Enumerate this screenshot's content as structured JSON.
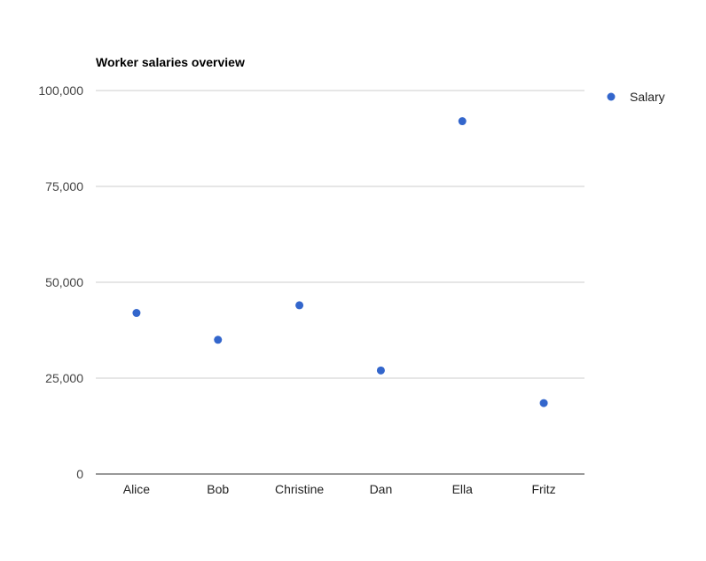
{
  "chart_data": {
    "type": "scatter",
    "title": "Worker salaries overview",
    "xlabel": "",
    "ylabel": "",
    "categories": [
      "Alice",
      "Bob",
      "Christine",
      "Dan",
      "Ella",
      "Fritz"
    ],
    "series": [
      {
        "name": "Salary",
        "values": [
          42000,
          35000,
          44000,
          27000,
          92000,
          18500
        ],
        "color": "#3366cc"
      }
    ],
    "ylim": [
      0,
      100000
    ],
    "yticks": [
      0,
      25000,
      50000,
      75000,
      100000
    ],
    "ytick_labels": [
      "0",
      "25,000",
      "50,000",
      "75,000",
      "100,000"
    ],
    "grid": true,
    "legend": "right",
    "colors": {
      "gridline": "#cccccc",
      "baseline": "#333333"
    }
  }
}
